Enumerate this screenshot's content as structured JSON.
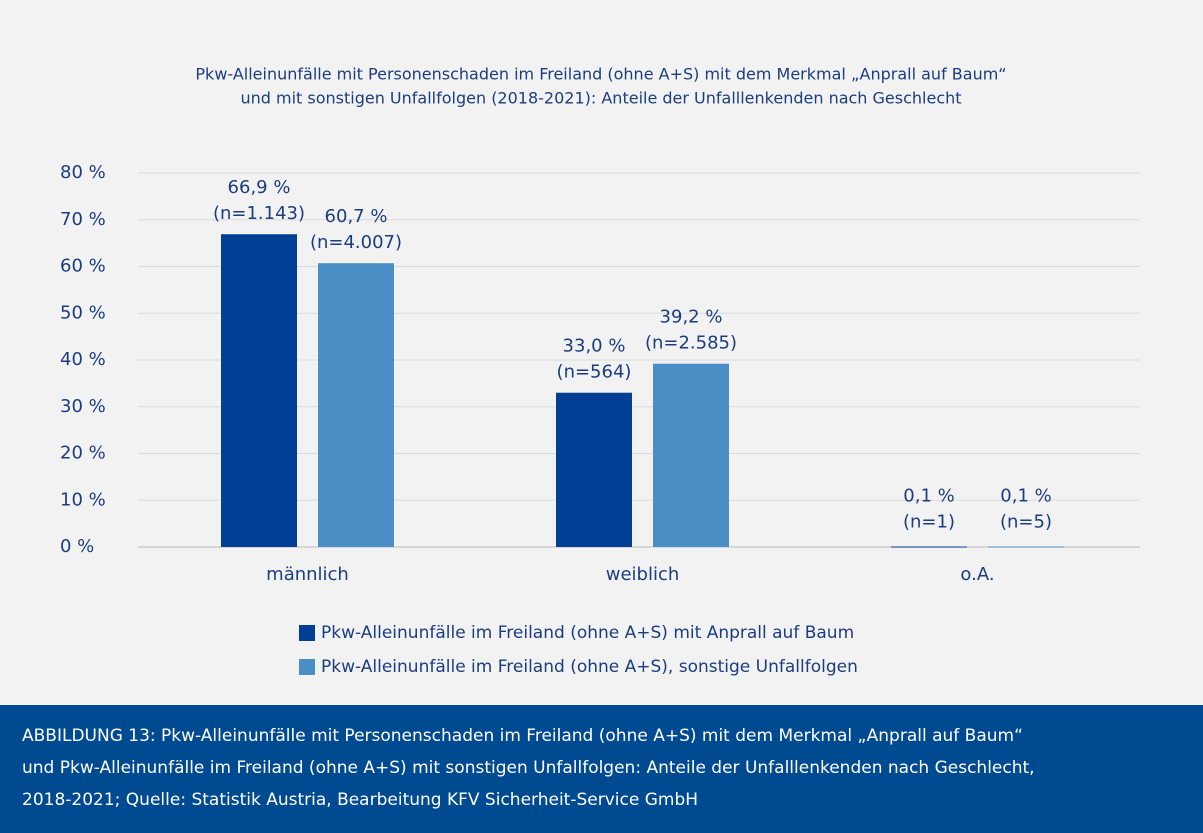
{
  "chart_data": {
    "type": "bar",
    "title": [
      "Pkw-Alleinunfälle mit Personenschaden im Freiland (ohne A+S) mit dem Merkmal „Anprall auf Baum“",
      "und mit sonstigen Unfallfolgen (2018-2021): Anteile der Unfalllenkenden nach Geschlecht"
    ],
    "categories": [
      "männlich",
      "weiblich",
      "o.A."
    ],
    "series": [
      {
        "name": "Pkw-Alleinunfälle im Freiland (ohne A+S) mit Anprall auf Baum",
        "color": "#003f94",
        "values": [
          66.9,
          33.0,
          0.1
        ],
        "value_labels": [
          "66,9 %",
          "33,0 %",
          "0,1 %"
        ],
        "n_labels": [
          "(n=1.143)",
          "(n=564)",
          "(n=1)"
        ]
      },
      {
        "name": "Pkw-Alleinunfälle im Freiland (ohne A+S), sonstige Unfallfolgen",
        "color": "#4a8ec6",
        "values": [
          60.7,
          39.2,
          0.1
        ],
        "value_labels": [
          "60,7 %",
          "39,2 %",
          "0,1 %"
        ],
        "n_labels": [
          "(n=4.007)",
          "(n=2.585)",
          "(n=5)"
        ]
      }
    ],
    "ylim": [
      0,
      80
    ],
    "yticks": [
      {
        "value": 0,
        "label": "0 %"
      },
      {
        "value": 10,
        "label": "10 %"
      },
      {
        "value": 20,
        "label": "20 %"
      },
      {
        "value": 30,
        "label": "30 %"
      },
      {
        "value": 40,
        "label": "40 %"
      },
      {
        "value": 50,
        "label": "50 %"
      },
      {
        "value": 60,
        "label": "60 %"
      },
      {
        "value": 70,
        "label": "70 %"
      },
      {
        "value": 80,
        "label": "80 %"
      }
    ],
    "grid": true,
    "legend": "bottom",
    "caption": [
      "ABBILDUNG 13: Pkw-Alleinunfälle mit Personenschaden im Freiland (ohne A+S) mit dem Merkmal „Anprall auf Baum“",
      "und Pkw-Alleinunfälle im Freiland (ohne A+S) mit sonstigen Unfallfolgen: Anteile der Unfalllenkenden nach Geschlecht,",
      "2018-2021; Quelle: Statistik Austria, Bearbeitung KFV Sicherheit-Service GmbH"
    ]
  }
}
